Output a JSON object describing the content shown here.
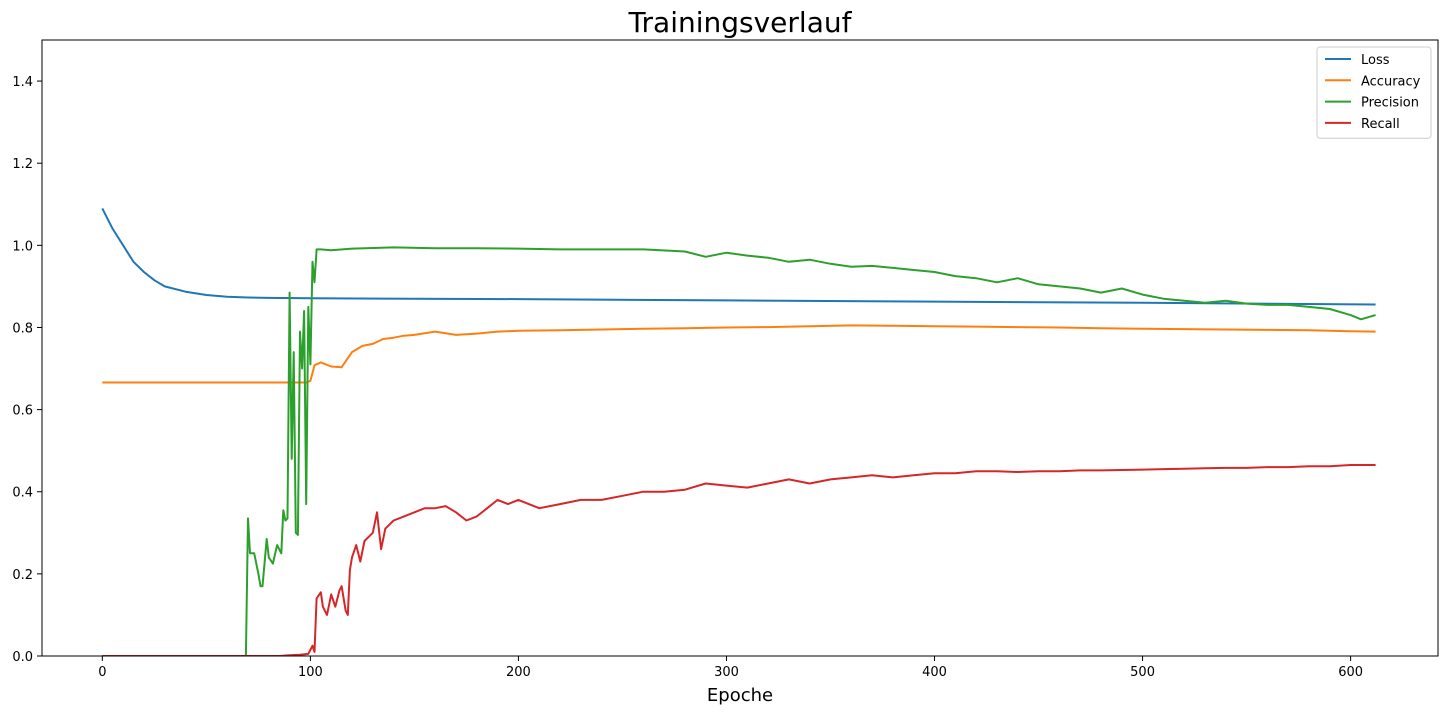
{
  "chart_data": {
    "type": "line",
    "title": "Trainingsverlauf",
    "xlabel": "Epoche",
    "ylabel": "",
    "xlim": [
      -29,
      642
    ],
    "ylim": [
      0,
      1.5
    ],
    "xticks": [
      0,
      100,
      200,
      300,
      400,
      500,
      600
    ],
    "yticks": [
      0.0,
      0.2,
      0.4,
      0.6,
      0.8,
      1.0,
      1.2,
      1.4
    ],
    "ytick_labels": [
      "0.0",
      "0.2",
      "0.4",
      "0.6",
      "0.8",
      "1.0",
      "1.2",
      "1.4"
    ],
    "grid": false,
    "legend_position": "top-right",
    "series": [
      {
        "name": "Loss",
        "color": "#1f77b4",
        "points": [
          [
            0,
            1.09
          ],
          [
            5,
            1.04
          ],
          [
            10,
            1.0
          ],
          [
            15,
            0.96
          ],
          [
            20,
            0.935
          ],
          [
            25,
            0.915
          ],
          [
            30,
            0.9
          ],
          [
            40,
            0.887
          ],
          [
            50,
            0.879
          ],
          [
            60,
            0.875
          ],
          [
            70,
            0.873
          ],
          [
            80,
            0.872
          ],
          [
            100,
            0.871
          ],
          [
            150,
            0.87
          ],
          [
            200,
            0.869
          ],
          [
            300,
            0.866
          ],
          [
            400,
            0.863
          ],
          [
            500,
            0.86
          ],
          [
            612,
            0.856
          ]
        ]
      },
      {
        "name": "Accuracy",
        "color": "#ff7f0e",
        "points": [
          [
            0,
            0.666
          ],
          [
            50,
            0.666
          ],
          [
            98,
            0.666
          ],
          [
            100,
            0.67
          ],
          [
            102,
            0.708
          ],
          [
            105,
            0.715
          ],
          [
            110,
            0.705
          ],
          [
            115,
            0.703
          ],
          [
            120,
            0.74
          ],
          [
            125,
            0.755
          ],
          [
            130,
            0.76
          ],
          [
            135,
            0.772
          ],
          [
            140,
            0.775
          ],
          [
            145,
            0.78
          ],
          [
            150,
            0.782
          ],
          [
            160,
            0.79
          ],
          [
            170,
            0.782
          ],
          [
            180,
            0.785
          ],
          [
            190,
            0.79
          ],
          [
            200,
            0.792
          ],
          [
            220,
            0.793
          ],
          [
            240,
            0.795
          ],
          [
            260,
            0.797
          ],
          [
            280,
            0.798
          ],
          [
            300,
            0.8
          ],
          [
            320,
            0.801
          ],
          [
            340,
            0.803
          ],
          [
            360,
            0.805
          ],
          [
            380,
            0.804
          ],
          [
            400,
            0.803
          ],
          [
            420,
            0.802
          ],
          [
            440,
            0.801
          ],
          [
            460,
            0.8
          ],
          [
            480,
            0.798
          ],
          [
            500,
            0.797
          ],
          [
            520,
            0.796
          ],
          [
            540,
            0.795
          ],
          [
            560,
            0.794
          ],
          [
            580,
            0.793
          ],
          [
            600,
            0.791
          ],
          [
            612,
            0.79
          ]
        ]
      },
      {
        "name": "Precision",
        "color": "#2ca02c",
        "points": [
          [
            0,
            0.0
          ],
          [
            69,
            0.0
          ],
          [
            70,
            0.335
          ],
          [
            71,
            0.25
          ],
          [
            73,
            0.25
          ],
          [
            75,
            0.2
          ],
          [
            76,
            0.17
          ],
          [
            77,
            0.17
          ],
          [
            79,
            0.285
          ],
          [
            80,
            0.24
          ],
          [
            82,
            0.225
          ],
          [
            84,
            0.27
          ],
          [
            86,
            0.25
          ],
          [
            87,
            0.355
          ],
          [
            88,
            0.33
          ],
          [
            89,
            0.335
          ],
          [
            90,
            0.885
          ],
          [
            91,
            0.48
          ],
          [
            92,
            0.74
          ],
          [
            93,
            0.3
          ],
          [
            94,
            0.295
          ],
          [
            95,
            0.79
          ],
          [
            96,
            0.7
          ],
          [
            97,
            0.84
          ],
          [
            98,
            0.37
          ],
          [
            99,
            0.85
          ],
          [
            100,
            0.71
          ],
          [
            101,
            0.96
          ],
          [
            102,
            0.91
          ],
          [
            103,
            0.99
          ],
          [
            105,
            0.99
          ],
          [
            110,
            0.988
          ],
          [
            120,
            0.992
          ],
          [
            140,
            0.995
          ],
          [
            160,
            0.993
          ],
          [
            180,
            0.993
          ],
          [
            200,
            0.992
          ],
          [
            220,
            0.99
          ],
          [
            240,
            0.99
          ],
          [
            260,
            0.99
          ],
          [
            280,
            0.985
          ],
          [
            290,
            0.972
          ],
          [
            300,
            0.982
          ],
          [
            310,
            0.975
          ],
          [
            320,
            0.97
          ],
          [
            330,
            0.96
          ],
          [
            340,
            0.965
          ],
          [
            350,
            0.955
          ],
          [
            360,
            0.948
          ],
          [
            370,
            0.95
          ],
          [
            380,
            0.945
          ],
          [
            390,
            0.94
          ],
          [
            400,
            0.935
          ],
          [
            410,
            0.925
          ],
          [
            420,
            0.92
          ],
          [
            430,
            0.91
          ],
          [
            440,
            0.92
          ],
          [
            450,
            0.905
          ],
          [
            460,
            0.9
          ],
          [
            470,
            0.895
          ],
          [
            480,
            0.885
          ],
          [
            490,
            0.895
          ],
          [
            500,
            0.88
          ],
          [
            510,
            0.87
          ],
          [
            520,
            0.865
          ],
          [
            530,
            0.86
          ],
          [
            540,
            0.865
          ],
          [
            550,
            0.858
          ],
          [
            560,
            0.855
          ],
          [
            570,
            0.855
          ],
          [
            580,
            0.85
          ],
          [
            590,
            0.845
          ],
          [
            600,
            0.83
          ],
          [
            605,
            0.82
          ],
          [
            612,
            0.83
          ]
        ]
      },
      {
        "name": "Recall",
        "color": "#d62728",
        "points": [
          [
            0,
            0.0
          ],
          [
            85,
            0.0
          ],
          [
            90,
            0.002
          ],
          [
            95,
            0.003
          ],
          [
            99,
            0.005
          ],
          [
            101,
            0.025
          ],
          [
            102,
            0.01
          ],
          [
            103,
            0.14
          ],
          [
            105,
            0.155
          ],
          [
            106,
            0.12
          ],
          [
            108,
            0.1
          ],
          [
            110,
            0.15
          ],
          [
            112,
            0.12
          ],
          [
            114,
            0.16
          ],
          [
            115,
            0.17
          ],
          [
            117,
            0.11
          ],
          [
            118,
            0.1
          ],
          [
            119,
            0.21
          ],
          [
            120,
            0.24
          ],
          [
            122,
            0.27
          ],
          [
            124,
            0.23
          ],
          [
            126,
            0.28
          ],
          [
            128,
            0.29
          ],
          [
            130,
            0.3
          ],
          [
            132,
            0.35
          ],
          [
            134,
            0.26
          ],
          [
            136,
            0.31
          ],
          [
            140,
            0.33
          ],
          [
            145,
            0.34
          ],
          [
            150,
            0.35
          ],
          [
            155,
            0.36
          ],
          [
            160,
            0.36
          ],
          [
            165,
            0.365
          ],
          [
            170,
            0.35
          ],
          [
            175,
            0.33
          ],
          [
            180,
            0.34
          ],
          [
            185,
            0.36
          ],
          [
            190,
            0.38
          ],
          [
            195,
            0.37
          ],
          [
            200,
            0.38
          ],
          [
            210,
            0.36
          ],
          [
            220,
            0.37
          ],
          [
            230,
            0.38
          ],
          [
            240,
            0.38
          ],
          [
            250,
            0.39
          ],
          [
            260,
            0.4
          ],
          [
            270,
            0.4
          ],
          [
            280,
            0.405
          ],
          [
            290,
            0.42
          ],
          [
            300,
            0.415
          ],
          [
            310,
            0.41
          ],
          [
            320,
            0.42
          ],
          [
            330,
            0.43
          ],
          [
            340,
            0.42
          ],
          [
            350,
            0.43
          ],
          [
            360,
            0.435
          ],
          [
            370,
            0.44
          ],
          [
            380,
            0.435
          ],
          [
            390,
            0.44
          ],
          [
            400,
            0.445
          ],
          [
            410,
            0.445
          ],
          [
            420,
            0.45
          ],
          [
            430,
            0.45
          ],
          [
            440,
            0.448
          ],
          [
            450,
            0.45
          ],
          [
            460,
            0.45
          ],
          [
            470,
            0.452
          ],
          [
            480,
            0.452
          ],
          [
            490,
            0.453
          ],
          [
            500,
            0.454
          ],
          [
            510,
            0.455
          ],
          [
            520,
            0.456
          ],
          [
            530,
            0.457
          ],
          [
            540,
            0.458
          ],
          [
            550,
            0.458
          ],
          [
            560,
            0.46
          ],
          [
            570,
            0.46
          ],
          [
            580,
            0.462
          ],
          [
            590,
            0.462
          ],
          [
            600,
            0.465
          ],
          [
            612,
            0.465
          ]
        ]
      }
    ]
  }
}
